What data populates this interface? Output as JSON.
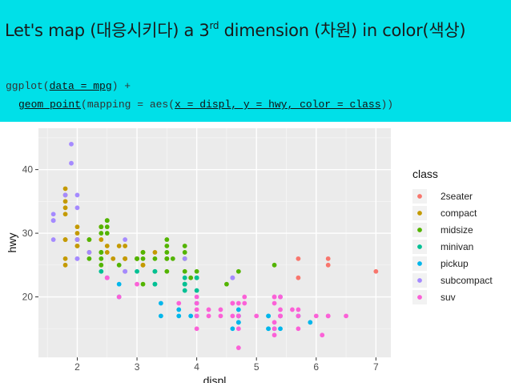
{
  "slide": {
    "title_prefix": "Let's map (",
    "title_ko1": "대응시키다",
    "title_mid": ") a 3",
    "title_sup": "rd",
    "title_mid2": " dimension (",
    "title_ko2": "차원",
    "title_mid3": ") in color(",
    "title_ko3": "색상",
    "title_suffix": ")",
    "code_line1_a": "ggplot(",
    "code_line1_b": "data = mpg",
    "code_line1_c": ") +",
    "code_line2_a": "geom_point",
    "code_line2_b": "(mapping = aes(",
    "code_line2_c": "x = displ, y = hwy, color = class",
    "code_line2_d": "))",
    "banner_color": "#00e0e8"
  },
  "chart_data": {
    "type": "scatter",
    "xlabel": "displ",
    "ylabel": "hwy",
    "xlim": [
      1.35,
      7.25
    ],
    "ylim": [
      10.5,
      46.5
    ],
    "xticks": [
      2,
      3,
      4,
      5,
      6,
      7
    ],
    "yticks": [
      20,
      30,
      40
    ],
    "grid": true,
    "legend_title": "class",
    "legend_position": "right",
    "series": [
      {
        "name": "2seater",
        "color": "#F8766D",
        "points": [
          [
            5.7,
            26
          ],
          [
            5.7,
            23
          ],
          [
            6.2,
            26
          ],
          [
            6.2,
            25
          ],
          [
            7.0,
            24
          ]
        ]
      },
      {
        "name": "compact",
        "color": "#C49A00",
        "points": [
          [
            1.8,
            29
          ],
          [
            1.8,
            29
          ],
          [
            2.0,
            31
          ],
          [
            2.0,
            30
          ],
          [
            2.8,
            26
          ],
          [
            2.8,
            26
          ],
          [
            3.1,
            27
          ],
          [
            1.8,
            26
          ],
          [
            1.8,
            25
          ],
          [
            2.0,
            28
          ],
          [
            2.0,
            28
          ],
          [
            2.8,
            26
          ],
          [
            3.1,
            25
          ],
          [
            3.1,
            25
          ],
          [
            2.2,
            27
          ],
          [
            2.2,
            29
          ],
          [
            2.4,
            31
          ],
          [
            2.4,
            31
          ],
          [
            3.0,
            26
          ],
          [
            3.0,
            26
          ],
          [
            3.3,
            27
          ],
          [
            1.8,
            37
          ],
          [
            1.8,
            35
          ],
          [
            1.8,
            36
          ],
          [
            1.8,
            33
          ],
          [
            1.8,
            34
          ],
          [
            2.0,
            29
          ],
          [
            2.0,
            29
          ],
          [
            2.8,
            24
          ],
          [
            2.0,
            29
          ],
          [
            2.5,
            27
          ],
          [
            2.5,
            28
          ],
          [
            2.8,
            28
          ],
          [
            2.4,
            29
          ],
          [
            2.6,
            26
          ],
          [
            2.7,
            28
          ]
        ]
      },
      {
        "name": "midsize",
        "color": "#53B400",
        "points": [
          [
            2.4,
            27
          ],
          [
            2.4,
            30
          ],
          [
            3.1,
            26
          ],
          [
            3.5,
            29
          ],
          [
            3.6,
            26
          ],
          [
            2.4,
            27
          ],
          [
            3.0,
            26
          ],
          [
            3.3,
            24
          ],
          [
            3.5,
            26
          ],
          [
            3.8,
            27
          ],
          [
            2.5,
            32
          ],
          [
            2.5,
            32
          ],
          [
            2.5,
            30
          ],
          [
            2.5,
            31
          ],
          [
            2.4,
            31
          ],
          [
            3.0,
            26
          ],
          [
            3.5,
            28
          ],
          [
            3.5,
            27
          ],
          [
            3.1,
            27
          ],
          [
            3.8,
            28
          ],
          [
            3.8,
            26
          ],
          [
            3.8,
            24
          ],
          [
            3.9,
            23
          ],
          [
            3.1,
            22
          ],
          [
            3.8,
            22
          ],
          [
            5.3,
            25
          ],
          [
            4.0,
            24
          ],
          [
            4.5,
            22
          ],
          [
            4.7,
            24
          ],
          [
            3.5,
            26
          ],
          [
            4.0,
            23
          ],
          [
            3.0,
            26
          ],
          [
            3.5,
            24
          ],
          [
            2.4,
            25
          ],
          [
            3.3,
            26
          ],
          [
            2.2,
            26
          ],
          [
            2.2,
            29
          ],
          [
            2.7,
            25
          ],
          [
            2.4,
            26
          ]
        ]
      },
      {
        "name": "minivan",
        "color": "#00C094",
        "points": [
          [
            2.4,
            24
          ],
          [
            3.0,
            24
          ],
          [
            3.3,
            22
          ],
          [
            3.3,
            22
          ],
          [
            3.3,
            24
          ],
          [
            3.8,
            22
          ],
          [
            3.8,
            21
          ],
          [
            3.8,
            23
          ],
          [
            4.0,
            21
          ],
          [
            3.8,
            22
          ],
          [
            4.0,
            23
          ]
        ]
      },
      {
        "name": "pickup",
        "color": "#00B6EB",
        "points": [
          [
            3.4,
            17
          ],
          [
            3.4,
            19
          ],
          [
            3.7,
            17
          ],
          [
            3.7,
            18
          ],
          [
            3.9,
            17
          ],
          [
            4.7,
            17
          ],
          [
            4.7,
            18
          ],
          [
            4.7,
            16
          ],
          [
            4.7,
            17
          ],
          [
            5.2,
            17
          ],
          [
            5.2,
            15
          ],
          [
            5.7,
            17
          ],
          [
            5.9,
            16
          ],
          [
            4.7,
            16
          ],
          [
            4.6,
            15
          ],
          [
            5.2,
            17
          ],
          [
            5.2,
            15
          ],
          [
            5.4,
            17
          ],
          [
            5.4,
            15
          ],
          [
            5.3,
            15
          ],
          [
            2.7,
            22
          ],
          [
            2.7,
            20
          ],
          [
            4.0,
            19
          ],
          [
            4.0,
            17
          ],
          [
            4.7,
            17
          ]
        ]
      },
      {
        "name": "subcompact",
        "color": "#A58AFF",
        "points": [
          [
            1.9,
            44
          ],
          [
            1.9,
            41
          ],
          [
            2.0,
            29
          ],
          [
            2.0,
            26
          ],
          [
            2.5,
            23
          ],
          [
            2.5,
            23
          ],
          [
            2.2,
            27
          ],
          [
            2.8,
            24
          ],
          [
            2.8,
            24
          ],
          [
            3.8,
            26
          ],
          [
            4.6,
            23
          ],
          [
            5.4,
            20
          ],
          [
            4.6,
            23
          ],
          [
            5.4,
            20
          ],
          [
            1.6,
            33
          ],
          [
            1.6,
            32
          ],
          [
            1.6,
            32
          ],
          [
            1.6,
            29
          ],
          [
            2.0,
            36
          ],
          [
            2.0,
            34
          ],
          [
            1.8,
            36
          ],
          [
            2.0,
            26
          ],
          [
            2.0,
            29
          ],
          [
            2.8,
            29
          ]
        ]
      },
      {
        "name": "suv",
        "color": "#FB61D7",
        "points": [
          [
            5.3,
            20
          ],
          [
            5.3,
            15
          ],
          [
            5.3,
            20
          ],
          [
            5.7,
            17
          ],
          [
            6.0,
            17
          ],
          [
            5.7,
            15
          ],
          [
            6.5,
            17
          ],
          [
            4.2,
            17
          ],
          [
            4.4,
            18
          ],
          [
            4.6,
            17
          ],
          [
            5.4,
            17
          ],
          [
            5.4,
            17
          ],
          [
            4.0,
            17
          ],
          [
            4.0,
            19
          ],
          [
            4.6,
            19
          ],
          [
            5.0,
            17
          ],
          [
            4.7,
            17
          ],
          [
            4.7,
            19
          ],
          [
            5.7,
            18
          ],
          [
            5.3,
            19
          ],
          [
            4.0,
            15
          ],
          [
            4.7,
            12
          ],
          [
            6.1,
            14
          ],
          [
            5.4,
            18
          ],
          [
            4.6,
            19
          ],
          [
            5.4,
            17
          ],
          [
            4.0,
            20
          ],
          [
            3.0,
            22
          ],
          [
            3.7,
            19
          ],
          [
            4.7,
            17
          ],
          [
            2.5,
            23
          ],
          [
            2.7,
            20
          ],
          [
            4.2,
            18
          ],
          [
            4.0,
            18
          ],
          [
            5.3,
            16
          ],
          [
            5.6,
            18
          ],
          [
            5.4,
            20
          ],
          [
            6.2,
            17
          ],
          [
            6.2,
            17
          ],
          [
            4.8,
            20
          ],
          [
            4.4,
            17
          ],
          [
            4.8,
            19
          ],
          [
            4.7,
            15
          ],
          [
            5.3,
            14
          ]
        ]
      }
    ]
  }
}
